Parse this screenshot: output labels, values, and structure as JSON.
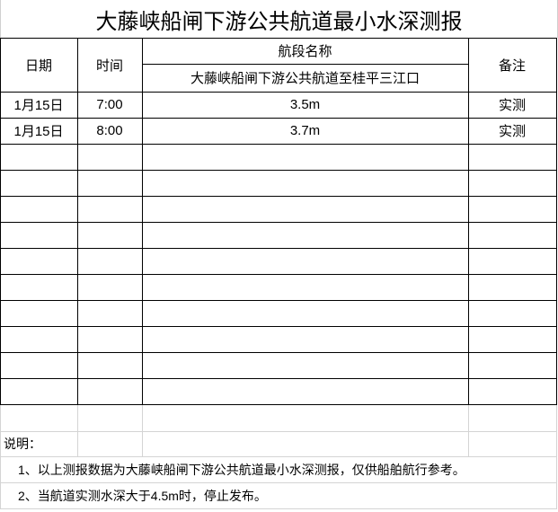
{
  "title": "大藤峡船闸下游公共航道最小水深测报",
  "header": {
    "date": "日期",
    "time": "时间",
    "section_label": "航段名称",
    "section_name": "大藤峡船闸下游公共航道至桂平三江口",
    "remark": "备注"
  },
  "rows": [
    {
      "date": "1月15日",
      "time": "7:00",
      "depth": "3.5m",
      "remark": "实测"
    },
    {
      "date": "1月15日",
      "time": "8:00",
      "depth": "3.7m",
      "remark": "实测"
    }
  ],
  "notes": {
    "label": "说明：",
    "items": [
      "1、以上测报数据为大藤峡船闸下游公共航道最小水深测报，仅供船舶航行参考。",
      "2、当航道实测水深大于4.5m时，停止发布。"
    ]
  }
}
